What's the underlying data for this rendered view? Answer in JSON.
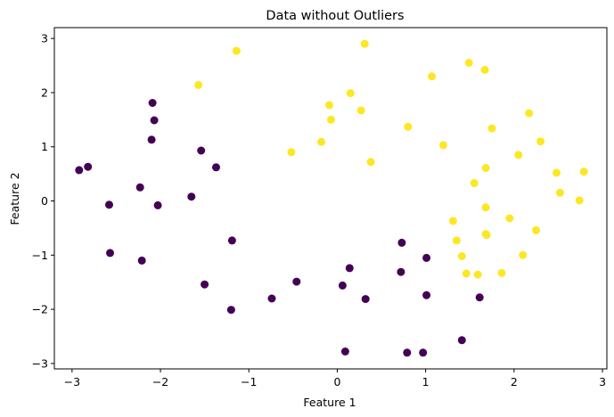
{
  "chart_data": {
    "type": "scatter",
    "title": "Data without Outliers",
    "xlabel": "Feature 1",
    "ylabel": "Feature 2",
    "xlim": [
      -3.2,
      3.05
    ],
    "ylim": [
      -3.1,
      3.2
    ],
    "xticks": [
      -3,
      -2,
      -1,
      0,
      1,
      2,
      3
    ],
    "yticks": [
      -3,
      -2,
      -1,
      0,
      1,
      2,
      3
    ],
    "grid": false,
    "series": [
      {
        "color": "#440154",
        "points": [
          [
            -2.92,
            0.57
          ],
          [
            -2.82,
            0.63
          ],
          [
            -2.58,
            -0.07
          ],
          [
            -2.57,
            -0.96
          ],
          [
            -2.23,
            0.25
          ],
          [
            -2.21,
            -1.1
          ],
          [
            -2.09,
            1.81
          ],
          [
            -2.07,
            1.49
          ],
          [
            -2.1,
            1.13
          ],
          [
            -2.03,
            -0.08
          ],
          [
            -1.54,
            0.93
          ],
          [
            -1.65,
            0.08
          ],
          [
            -1.37,
            0.62
          ],
          [
            -1.5,
            -1.54
          ],
          [
            -1.19,
            -0.73
          ],
          [
            -1.2,
            -2.01
          ],
          [
            -0.74,
            -1.8
          ],
          [
            -0.46,
            -1.49
          ],
          [
            0.06,
            -1.56
          ],
          [
            0.14,
            -1.24
          ],
          [
            0.32,
            -1.81
          ],
          [
            0.09,
            -2.78
          ],
          [
            0.73,
            -0.77
          ],
          [
            0.72,
            -1.31
          ],
          [
            1.01,
            -1.05
          ],
          [
            1.01,
            -1.74
          ],
          [
            0.79,
            -2.8
          ],
          [
            0.97,
            -2.8
          ],
          [
            1.41,
            -2.57
          ],
          [
            1.61,
            -1.78
          ]
        ]
      },
      {
        "color": "#fde725",
        "points": [
          [
            -1.57,
            2.14
          ],
          [
            -1.14,
            2.77
          ],
          [
            0.31,
            2.9
          ],
          [
            1.07,
            2.3
          ],
          [
            1.49,
            2.55
          ],
          [
            1.67,
            2.42
          ],
          [
            -0.52,
            0.9
          ],
          [
            -0.18,
            1.09
          ],
          [
            -0.09,
            1.77
          ],
          [
            -0.07,
            1.5
          ],
          [
            0.15,
            1.99
          ],
          [
            0.27,
            1.67
          ],
          [
            0.38,
            0.72
          ],
          [
            0.8,
            1.37
          ],
          [
            1.2,
            1.03
          ],
          [
            1.75,
            1.34
          ],
          [
            2.17,
            1.62
          ],
          [
            2.3,
            1.1
          ],
          [
            2.05,
            0.85
          ],
          [
            1.68,
            0.61
          ],
          [
            1.55,
            0.33
          ],
          [
            2.48,
            0.52
          ],
          [
            2.79,
            0.54
          ],
          [
            2.52,
            0.15
          ],
          [
            2.74,
            0.01
          ],
          [
            1.68,
            -0.12
          ],
          [
            1.31,
            -0.37
          ],
          [
            1.95,
            -0.32
          ],
          [
            2.25,
            -0.54
          ],
          [
            1.68,
            -0.61
          ],
          [
            1.69,
            -0.63
          ],
          [
            1.35,
            -0.73
          ],
          [
            1.41,
            -1.02
          ],
          [
            2.1,
            -1.0
          ],
          [
            1.46,
            -1.34
          ],
          [
            1.59,
            -1.36
          ],
          [
            1.86,
            -1.33
          ]
        ]
      }
    ]
  }
}
